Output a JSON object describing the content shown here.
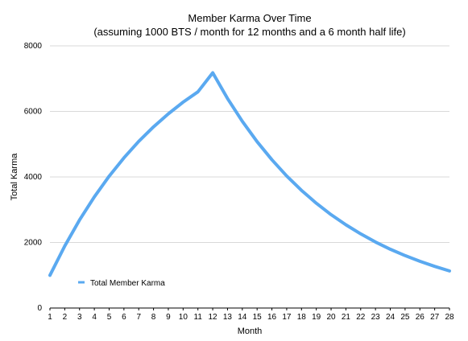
{
  "chart_data": {
    "type": "line",
    "title": "Member Karma Over Time",
    "subtitle": "(assuming 1000 BTS / month for 12 months and a 6 month half life)",
    "xlabel": "Month",
    "ylabel": "Total Karma",
    "x": [
      1,
      2,
      3,
      4,
      5,
      6,
      7,
      8,
      9,
      10,
      11,
      12,
      13,
      14,
      15,
      16,
      17,
      18,
      19,
      20,
      21,
      22,
      23,
      24,
      25,
      26,
      27,
      28
    ],
    "xlim": [
      1,
      28
    ],
    "ylim": [
      0,
      8000
    ],
    "y_ticks": [
      0,
      2000,
      4000,
      6000,
      8000
    ],
    "grid": "horizontal",
    "legend_position": "bottom-left",
    "series": [
      {
        "name": "Total Member Karma",
        "color": "#5aa9f0",
        "values": [
          1000,
          1891,
          2685,
          3392,
          4022,
          4584,
          5084,
          5530,
          5927,
          6281,
          6597,
          7177,
          6395,
          5697,
          5076,
          4522,
          4029,
          3590,
          3198,
          2850,
          2539,
          2262,
          2015,
          1795,
          1600,
          1425,
          1270,
          1131
        ]
      }
    ]
  }
}
